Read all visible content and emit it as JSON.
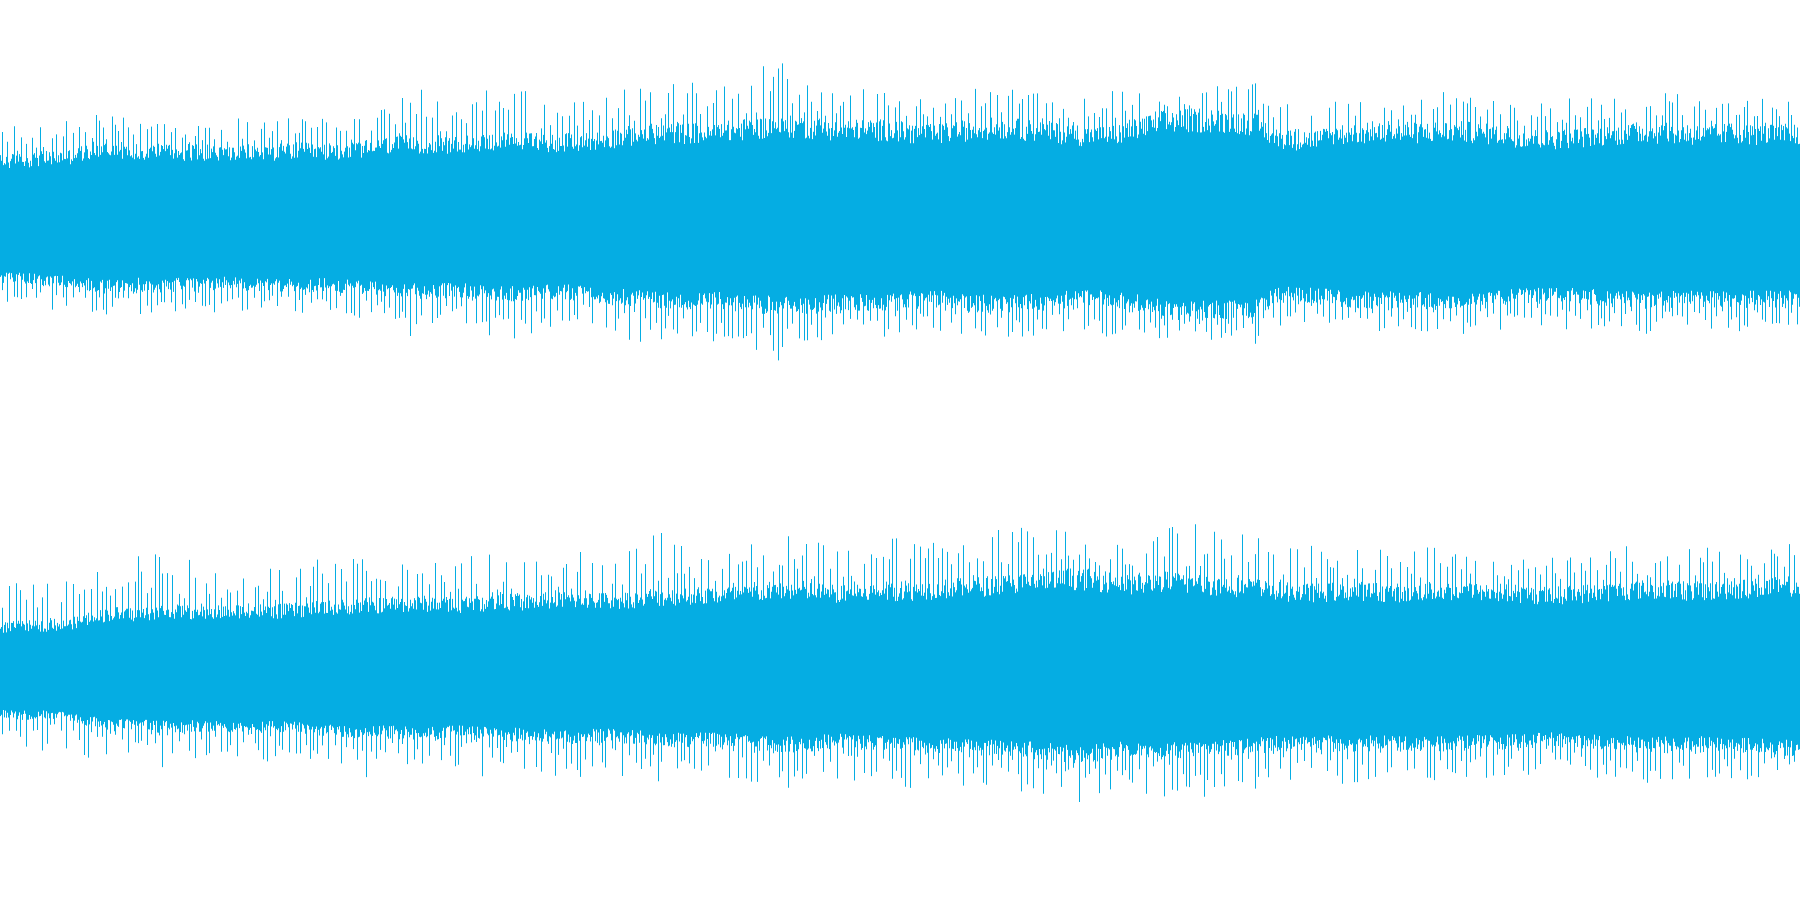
{
  "waveform": {
    "color": "#05ade3",
    "background": "#ffffff",
    "channel_count": 2,
    "channels": [
      {
        "name": "channel-1",
        "envelope": [
          0.4,
          0.41,
          0.42,
          0.43,
          0.47,
          0.48,
          0.46,
          0.47,
          0.46,
          0.46,
          0.45,
          0.46,
          0.46,
          0.47,
          0.46,
          0.47,
          0.48,
          0.5,
          0.51,
          0.51,
          0.5,
          0.52,
          0.53,
          0.53,
          0.52,
          0.52,
          0.53,
          0.55,
          0.57,
          0.58,
          0.58,
          0.58,
          0.59,
          0.61,
          0.62,
          0.62,
          0.61,
          0.6,
          0.6,
          0.6,
          0.58,
          0.57,
          0.59,
          0.61,
          0.61,
          0.6,
          0.59,
          0.57,
          0.56,
          0.57,
          0.61,
          0.65,
          0.66,
          0.66,
          0.65,
          0.64,
          0.55,
          0.53,
          0.55,
          0.57,
          0.58,
          0.58,
          0.58,
          0.59,
          0.59,
          0.58,
          0.56,
          0.55,
          0.54,
          0.55,
          0.56,
          0.57,
          0.58,
          0.58,
          0.57,
          0.57,
          0.58,
          0.57,
          0.57,
          0.57
        ],
        "spikes": [
          0.55,
          0.62,
          0.58,
          0.67,
          0.72,
          0.64,
          0.66,
          0.61,
          0.63,
          0.6,
          0.65,
          0.62,
          0.62,
          0.64,
          0.63,
          0.66,
          0.68,
          0.69,
          0.83,
          0.8,
          0.7,
          0.79,
          0.83,
          0.8,
          0.74,
          0.72,
          0.73,
          0.78,
          0.85,
          0.83,
          0.87,
          0.82,
          0.86,
          0.88,
          1.0,
          0.91,
          0.82,
          0.81,
          0.8,
          0.8,
          0.77,
          0.79,
          0.81,
          0.8,
          0.79,
          0.81,
          0.78,
          0.76,
          0.8,
          0.8,
          0.82,
          0.8,
          0.79,
          0.82,
          0.83,
          0.86,
          0.72,
          0.7,
          0.73,
          0.74,
          0.76,
          0.78,
          0.76,
          0.8,
          0.78,
          0.77,
          0.74,
          0.72,
          0.73,
          0.75,
          0.76,
          0.76,
          0.77,
          0.78,
          0.77,
          0.75,
          0.76,
          0.74,
          0.75,
          0.74
        ]
      },
      {
        "name": "channel-2",
        "envelope": [
          0.3,
          0.31,
          0.31,
          0.32,
          0.36,
          0.39,
          0.38,
          0.4,
          0.4,
          0.39,
          0.4,
          0.41,
          0.4,
          0.41,
          0.42,
          0.43,
          0.44,
          0.44,
          0.45,
          0.45,
          0.44,
          0.45,
          0.46,
          0.46,
          0.47,
          0.48,
          0.47,
          0.47,
          0.48,
          0.49,
          0.5,
          0.5,
          0.51,
          0.52,
          0.53,
          0.54,
          0.52,
          0.51,
          0.52,
          0.53,
          0.53,
          0.54,
          0.55,
          0.56,
          0.57,
          0.58,
          0.59,
          0.61,
          0.6,
          0.58,
          0.57,
          0.59,
          0.58,
          0.57,
          0.56,
          0.55,
          0.53,
          0.52,
          0.52,
          0.53,
          0.53,
          0.52,
          0.52,
          0.53,
          0.53,
          0.52,
          0.52,
          0.51,
          0.5,
          0.51,
          0.52,
          0.53,
          0.54,
          0.54,
          0.53,
          0.53,
          0.54,
          0.55,
          0.56,
          0.56
        ],
        "spikes": [
          0.52,
          0.58,
          0.56,
          0.59,
          0.63,
          0.66,
          0.75,
          0.7,
          0.72,
          0.62,
          0.64,
          0.66,
          0.62,
          0.64,
          0.7,
          0.65,
          0.76,
          0.64,
          0.7,
          0.66,
          0.67,
          0.74,
          0.68,
          0.7,
          0.71,
          0.78,
          0.72,
          0.74,
          0.81,
          0.84,
          0.75,
          0.72,
          0.74,
          0.78,
          0.8,
          0.83,
          0.78,
          0.74,
          0.78,
          0.8,
          0.82,
          0.78,
          0.82,
          0.84,
          0.86,
          0.87,
          0.85,
          0.93,
          0.88,
          0.86,
          0.84,
          0.88,
          0.87,
          0.92,
          0.84,
          0.84,
          0.78,
          0.76,
          0.76,
          0.79,
          0.78,
          0.74,
          0.75,
          0.77,
          0.76,
          0.75,
          0.74,
          0.72,
          0.71,
          0.72,
          0.74,
          0.75,
          0.78,
          0.76,
          0.77,
          0.75,
          0.77,
          0.78,
          0.79,
          0.78
        ]
      }
    ]
  }
}
